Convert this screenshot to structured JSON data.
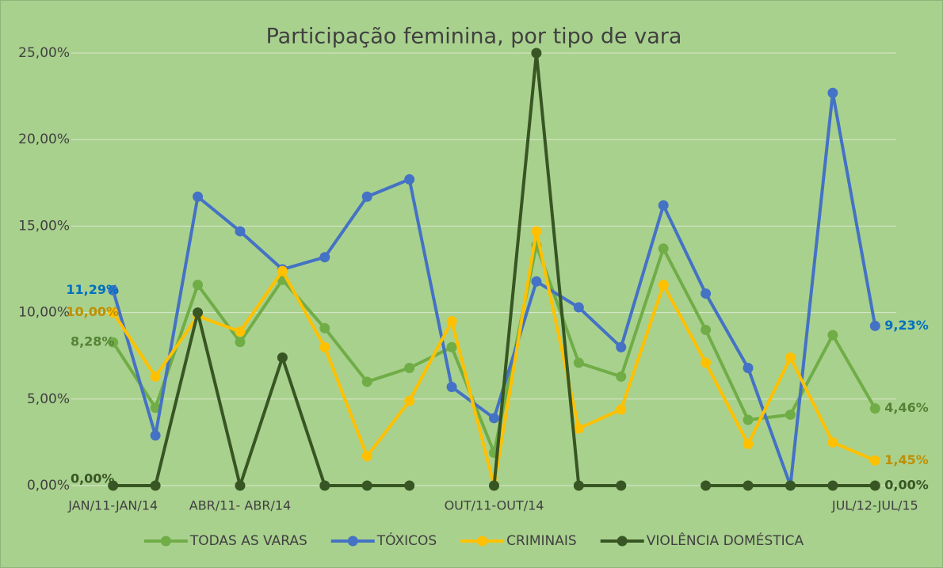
{
  "chart_data": {
    "type": "line",
    "title": "Participação feminina, por tipo de vara",
    "categories": [
      "JAN/11-JAN/14",
      null,
      null,
      "ABR/11- ABR/14",
      null,
      null,
      null,
      null,
      null,
      "OUT/11-OUT/14",
      null,
      null,
      null,
      null,
      null,
      null,
      null,
      null,
      "JUL/12-JUL/15"
    ],
    "series": [
      {
        "name": "TODAS AS VARAS",
        "color": "#70ad47",
        "label_color": "#548235",
        "values": [
          8.28,
          4.5,
          11.6,
          8.3,
          11.9,
          9.1,
          6.0,
          6.8,
          8.0,
          1.9,
          13.9,
          7.1,
          6.3,
          13.7,
          9.0,
          3.8,
          4.1,
          8.7,
          4.46
        ],
        "value_labels": [
          "8,28%",
          null,
          null,
          null,
          null,
          null,
          null,
          null,
          null,
          null,
          null,
          null,
          null,
          null,
          null,
          null,
          null,
          null,
          "4,46%"
        ]
      },
      {
        "name": "TÓXICOS",
        "color": "#4472c4",
        "label_color": "#0070c0",
        "values": [
          11.29,
          2.9,
          16.7,
          14.7,
          12.5,
          13.2,
          16.7,
          17.7,
          5.7,
          3.9,
          11.8,
          10.3,
          8.0,
          16.2,
          11.1,
          6.8,
          0,
          22.7,
          9.23
        ],
        "value_labels": [
          "11,29%",
          null,
          null,
          null,
          null,
          null,
          null,
          null,
          null,
          null,
          null,
          null,
          null,
          null,
          null,
          null,
          null,
          null,
          "9,23%"
        ]
      },
      {
        "name": "CRIMINAIS",
        "color": "#ffc000",
        "label_color": "#bf8f00",
        "values": [
          10.0,
          6.3,
          9.8,
          8.9,
          12.4,
          8.0,
          1.7,
          4.9,
          9.5,
          0,
          14.7,
          3.3,
          4.4,
          11.6,
          7.1,
          2.4,
          7.4,
          2.5,
          1.45
        ],
        "value_labels": [
          "10,00%",
          null,
          null,
          null,
          null,
          null,
          null,
          null,
          null,
          null,
          null,
          null,
          null,
          null,
          null,
          null,
          null,
          null,
          "1,45%"
        ]
      },
      {
        "name": "VIOLÊNCIA DOMÉSTICA",
        "color": "#375623",
        "label_color": "#375623",
        "values": [
          0,
          0,
          10.0,
          0,
          7.4,
          0,
          0,
          0,
          null,
          0,
          25,
          0,
          0,
          null,
          0,
          0,
          0,
          0,
          0
        ],
        "value_labels": [
          "0,00%",
          null,
          null,
          null,
          null,
          null,
          null,
          null,
          null,
          null,
          null,
          null,
          null,
          null,
          null,
          null,
          null,
          null,
          "0,00%"
        ]
      }
    ],
    "ylim": [
      0,
      25
    ],
    "yticks": [
      {
        "value": 0,
        "label": "0,00%"
      },
      {
        "value": 5,
        "label": "5,00%"
      },
      {
        "value": 10,
        "label": "10,00%"
      },
      {
        "value": 15,
        "label": "15,00%"
      },
      {
        "value": 20,
        "label": "20,00%"
      },
      {
        "value": 25,
        "label": "25,00%"
      }
    ],
    "grid": true,
    "legend": "bottom"
  }
}
